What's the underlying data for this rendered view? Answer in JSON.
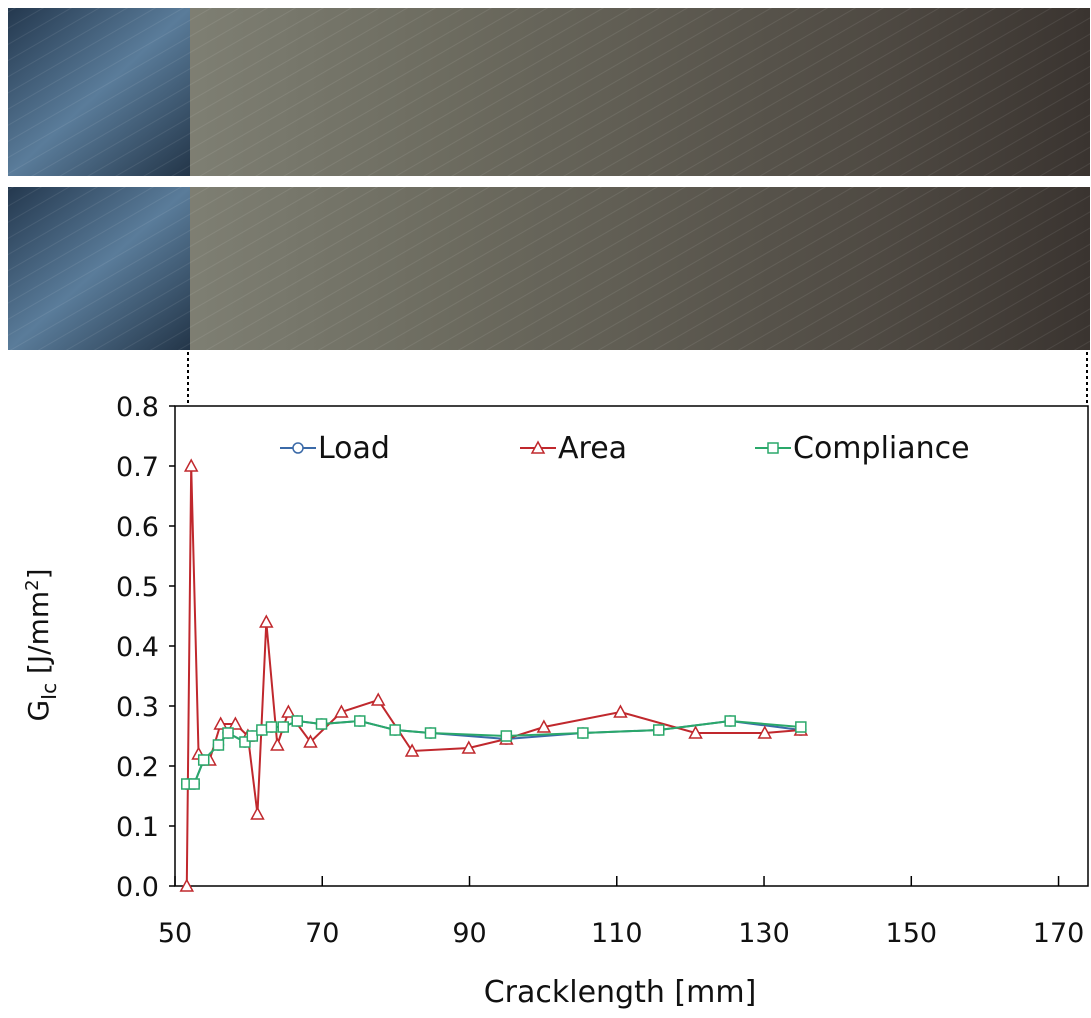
{
  "chart_data": {
    "type": "line",
    "x_label": "Cracklength [mm]",
    "y_label": {
      "symbol": "G",
      "subscript": "Ic",
      "unit": " [J/mm",
      "superscript": "2",
      "close": "]"
    },
    "xlim": [
      50,
      174
    ],
    "xticks": [
      50,
      70,
      90,
      110,
      130,
      150,
      170
    ],
    "ylim": [
      0,
      0.8
    ],
    "yticks": [
      {
        "value": 0,
        "label": "0.0"
      },
      0.1,
      0.2,
      0.3,
      0.4,
      0.5,
      0.6,
      0.7,
      0.8
    ],
    "grid": false,
    "legend": "top",
    "series": [
      {
        "name": "Load",
        "color": "#3b6aa8",
        "marker": "circle",
        "x": [
          51.6,
          52.6,
          53.9,
          55.9,
          57.2,
          59.5,
          60.5,
          61.8,
          63.1,
          64.7,
          66.6,
          69.9,
          75.1,
          79.9,
          84.7,
          95.0,
          105.4,
          115.7,
          125.4,
          135.0
        ],
        "values": [
          0.17,
          0.17,
          0.21,
          0.235,
          0.255,
          0.24,
          0.25,
          0.26,
          0.265,
          0.265,
          0.275,
          0.27,
          0.275,
          0.26,
          0.255,
          0.245,
          0.255,
          0.26,
          0.275,
          0.26
        ]
      },
      {
        "name": "Area",
        "color": "#c0282d",
        "marker": "triangle",
        "x": [
          51.6,
          52.2,
          53.2,
          54.7,
          56.2,
          58.2,
          59.9,
          61.2,
          62.4,
          63.9,
          65.4,
          68.4,
          72.6,
          77.6,
          82.2,
          89.9,
          95.0,
          100.1,
          110.5,
          120.7,
          130.1,
          135.0
        ],
        "values": [
          0.0,
          0.7,
          0.22,
          0.21,
          0.27,
          0.27,
          0.25,
          0.12,
          0.44,
          0.235,
          0.29,
          0.24,
          0.29,
          0.31,
          0.225,
          0.23,
          0.245,
          0.265,
          0.29,
          0.255,
          0.255,
          0.26
        ]
      },
      {
        "name": "Compliance",
        "color": "#2aa86a",
        "marker": "square",
        "x": [
          51.6,
          52.6,
          53.9,
          55.9,
          57.2,
          59.5,
          60.5,
          61.8,
          63.1,
          64.7,
          66.6,
          69.9,
          75.1,
          79.9,
          84.7,
          95.0,
          105.4,
          115.7,
          125.4,
          135.0
        ],
        "values": [
          0.17,
          0.17,
          0.21,
          0.235,
          0.255,
          0.24,
          0.25,
          0.26,
          0.265,
          0.265,
          0.275,
          0.27,
          0.275,
          0.26,
          0.255,
          0.25,
          0.255,
          0.26,
          0.275,
          0.265
        ]
      }
    ]
  }
}
